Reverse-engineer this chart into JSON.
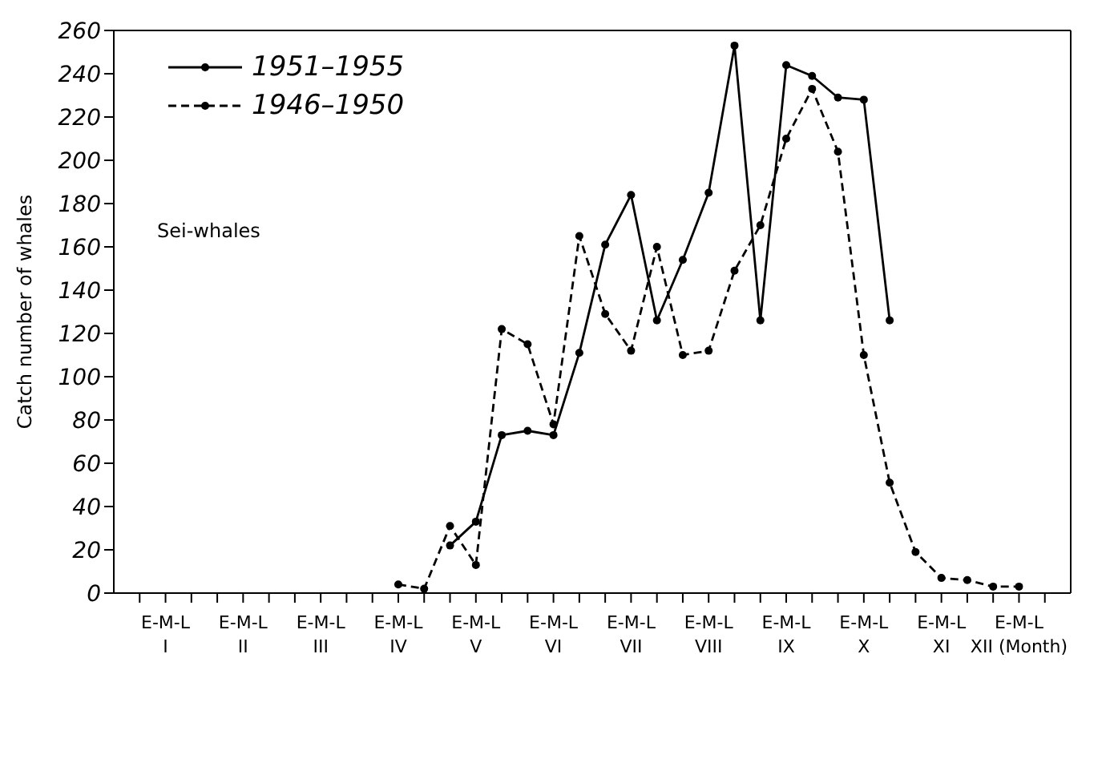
{
  "chart_data": {
    "type": "line",
    "ylabel": "Catch number of whales",
    "annotations": [
      "Sei-whales"
    ],
    "categories": [
      null,
      "E-M-L\nI",
      null,
      null,
      "E-M-L\nII",
      null,
      null,
      "E-M-L\nIII",
      null,
      null,
      "E-M-L\nIV",
      null,
      null,
      "E-M-L\nV",
      null,
      null,
      "E-M-L\nVI",
      null,
      null,
      "E-M-L\nVII",
      null,
      null,
      "E-M-L\nVIII",
      null,
      null,
      "E-M-L\nIX",
      null,
      null,
      "E-M-L\nX",
      null,
      null,
      "E-M-L\nXI",
      null,
      null,
      "E-M-L\nXII (Month)",
      null
    ],
    "series": [
      {
        "name": "1951–1955",
        "color": "#000000",
        "line_style": "solid",
        "values": [
          null,
          null,
          null,
          null,
          null,
          null,
          null,
          null,
          null,
          null,
          null,
          null,
          22,
          33,
          73,
          75,
          73,
          111,
          161,
          184,
          126,
          154,
          185,
          253,
          126,
          244,
          239,
          229,
          228,
          126,
          null,
          null,
          null,
          null,
          null,
          null
        ]
      },
      {
        "name": "1946–1950",
        "color": "#000000",
        "line_style": "dashed",
        "values": [
          null,
          null,
          null,
          null,
          null,
          null,
          null,
          null,
          null,
          null,
          4,
          2,
          31,
          13,
          122,
          115,
          78,
          165,
          129,
          112,
          160,
          110,
          112,
          149,
          170,
          210,
          233,
          204,
          110,
          51,
          19,
          7,
          6,
          3,
          3,
          null
        ]
      }
    ],
    "ylim": [
      0,
      260
    ],
    "yticks": [
      0,
      20,
      40,
      60,
      80,
      100,
      120,
      140,
      160,
      180,
      200,
      220,
      240,
      260
    ],
    "grid": false,
    "legend": "top left",
    "marker": "circle"
  }
}
